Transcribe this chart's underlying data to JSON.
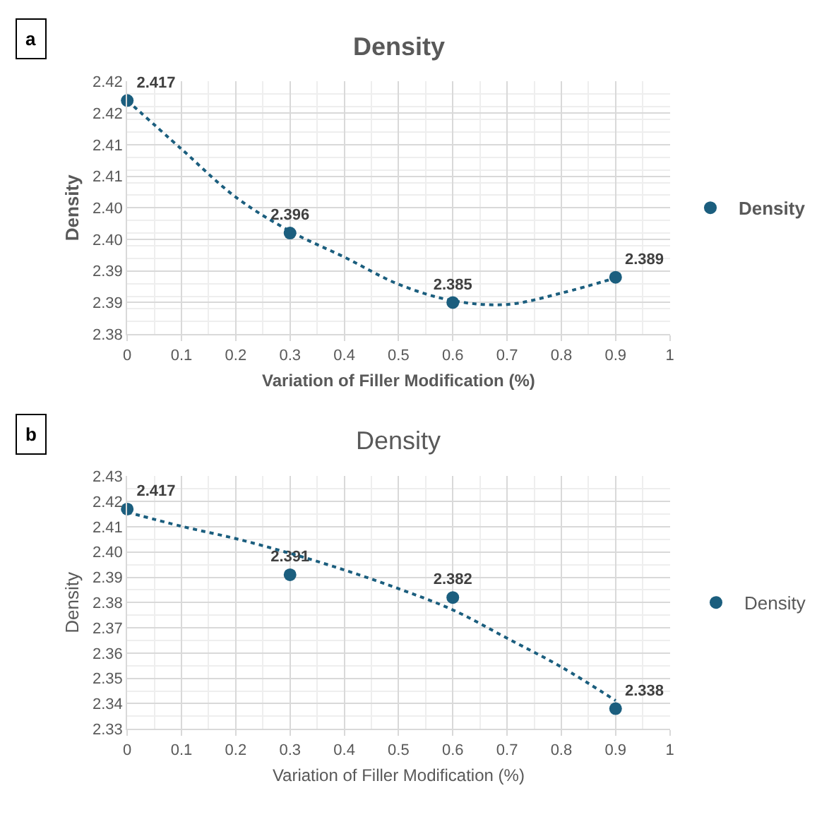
{
  "chart_data": [
    {
      "type": "scatter",
      "title": "Density",
      "xlabel": "Variation of Filler Modification (%)",
      "ylabel": "Density",
      "annotations": [
        "a"
      ],
      "x": [
        0,
        0.3,
        0.6,
        0.9
      ],
      "series": [
        {
          "name": "Density",
          "color": "#1b5e7e",
          "values": [
            2.417,
            2.396,
            2.385,
            2.389
          ],
          "data_labels": true
        },
        {
          "type": "line",
          "color": "#1b5e7e",
          "line_style": "dotted",
          "marker": "none",
          "x": [
            0,
            0.1,
            0.2,
            0.3,
            0.4,
            0.5,
            0.6,
            0.7,
            0.8,
            0.9
          ],
          "values": [
            2.417,
            2.4093,
            2.4017,
            2.3963,
            2.3922,
            2.3879,
            2.3853,
            2.3847,
            2.3865,
            2.3889
          ]
        }
      ],
      "marker": "circle",
      "xlim": [
        0,
        1
      ],
      "xticks": [
        0,
        0.1,
        0.2,
        0.3,
        0.4,
        0.5,
        0.6,
        0.7,
        0.8,
        0.9,
        1
      ],
      "ylim": [
        2.38,
        2.42
      ],
      "yticks": [
        2.38,
        {
          "value": 2.385,
          "label": "2.39"
        },
        2.39,
        {
          "value": 2.395,
          "label": "2.40"
        },
        {
          "value": 2.4,
          "label": "2.40"
        },
        {
          "value": 2.405,
          "label": "2.41"
        },
        2.41,
        {
          "value": 2.415,
          "label": "2.42"
        },
        2.42
      ],
      "grid": true,
      "legend": "right"
    },
    {
      "type": "scatter",
      "title": "Density",
      "xlabel": "Variation of Filler Modification (%)",
      "ylabel": "Density",
      "annotations": [
        "b"
      ],
      "x": [
        0,
        0.3,
        0.6,
        0.9
      ],
      "series": [
        {
          "name": "Density",
          "color": "#1b5e7e",
          "values": [
            2.417,
            2.391,
            2.382,
            2.338
          ],
          "data_labels": true
        },
        {
          "type": "line",
          "color": "#1b5e7e",
          "line_style": "dotted",
          "marker": "none",
          "x": [
            0,
            0.1,
            0.2,
            0.3,
            0.4,
            0.5,
            0.6,
            0.7,
            0.8,
            0.9
          ],
          "values": [
            2.4158,
            2.4102,
            2.4053,
            2.3995,
            2.3929,
            2.3855,
            2.3771,
            2.3659,
            2.3545,
            2.3412
          ]
        }
      ],
      "marker": "circle",
      "xlim": [
        0,
        1
      ],
      "xticks": [
        0,
        0.1,
        0.2,
        0.3,
        0.4,
        0.5,
        0.6,
        0.7,
        0.8,
        0.9,
        1
      ],
      "ylim": [
        2.33,
        2.43
      ],
      "yticks": [
        2.33,
        2.34,
        2.35,
        2.36,
        2.37,
        2.38,
        2.39,
        {
          "value": 2.4,
          "label": "2.40"
        },
        2.41,
        2.42,
        2.43
      ],
      "grid": true,
      "legend": "right"
    }
  ]
}
